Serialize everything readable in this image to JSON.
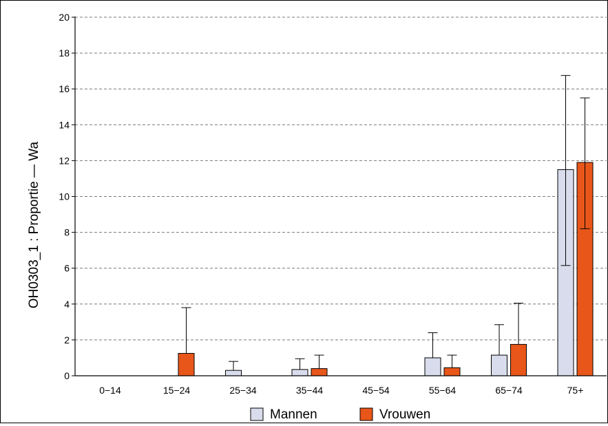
{
  "chart_data": {
    "type": "bar",
    "ylabel": "OH0303_1 : Proportie  —  Wa",
    "xlabel": "",
    "title": "",
    "ylim": [
      0,
      20
    ],
    "yticks": [
      0,
      2,
      4,
      6,
      8,
      10,
      12,
      14,
      16,
      18,
      20
    ],
    "grid": true,
    "legend_position": "bottom",
    "categories": [
      "0−14",
      "15−24",
      "25−34",
      "35−44",
      "45−54",
      "55−64",
      "65−74",
      "75+"
    ],
    "series": [
      {
        "name": "Mannen",
        "color": "#d9dcec",
        "values": [
          0,
          0,
          0.3,
          0.35,
          0,
          1.0,
          1.15,
          11.5
        ],
        "error_upper": [
          null,
          null,
          0.8,
          0.95,
          null,
          2.4,
          2.85,
          16.75
        ],
        "error_lower": [
          null,
          null,
          null,
          null,
          null,
          null,
          null,
          6.15
        ]
      },
      {
        "name": "Vrouwen",
        "color": "#e8561a",
        "values": [
          0,
          1.25,
          0,
          0.4,
          0,
          0.45,
          1.75,
          11.9
        ],
        "error_upper": [
          null,
          3.8,
          null,
          1.15,
          null,
          1.15,
          4.05,
          15.5
        ],
        "error_lower": [
          null,
          null,
          null,
          null,
          null,
          null,
          null,
          8.2
        ]
      }
    ]
  }
}
